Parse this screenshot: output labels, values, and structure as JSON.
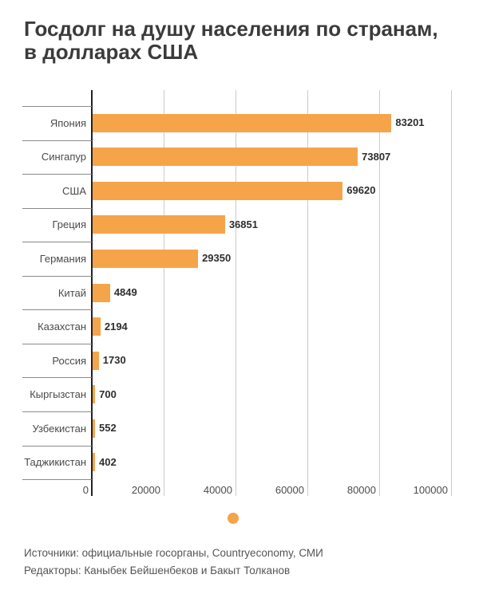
{
  "title": {
    "lines": [
      "Госдолг на душу населения по странам,",
      "в долларах США"
    ],
    "full": "Госдолг на душу населения по странам, в долларах США"
  },
  "chart_data": {
    "type": "bar",
    "orientation": "horizontal",
    "title": "Госдолг на душу населения по странам, в долларах США",
    "categories": [
      "Япония",
      "Сингапур",
      "США",
      "Греция",
      "Германия",
      "Китай",
      "Казахстан",
      "Россия",
      "Кыргызстан",
      "Узбекистан",
      "Таджикистан"
    ],
    "values": [
      83201,
      73807,
      69620,
      36851,
      29350,
      4849,
      2194,
      1730,
      700,
      552,
      402
    ],
    "value_labels": [
      "83201",
      "73807",
      "69620",
      "36851",
      "29350",
      "4849",
      "2194",
      "1730",
      "700",
      "552",
      "402"
    ],
    "xlabel": "",
    "ylabel": "",
    "xlim": [
      0,
      100000
    ],
    "xticks": [
      0,
      20000,
      40000,
      60000,
      80000,
      100000
    ],
    "xtick_labels": [
      "0",
      "20000",
      "40000",
      "60000",
      "80000",
      "100000"
    ],
    "grid": true,
    "legend_position": "bottom-center",
    "legend_entries": [
      {
        "label": "",
        "marker": "dot"
      }
    ]
  },
  "colors": {
    "bar": "#F5A44A",
    "title_text": "#3b3b3b",
    "category_text": "#4a4a4a",
    "value_text": "#2e2e2e",
    "tick_text": "#4c4c4c",
    "gridline": "#cccccc",
    "separator": "#8a8a8a",
    "axis": "#222222",
    "footer_text": "#555555",
    "background": "#ffffff"
  },
  "footer": {
    "sources": "Источники: официальные госорганы, Countryeconomy, СМИ",
    "editors": "Редакторы: Каныбек Бейшенбеков и Бакыт Толканов"
  }
}
